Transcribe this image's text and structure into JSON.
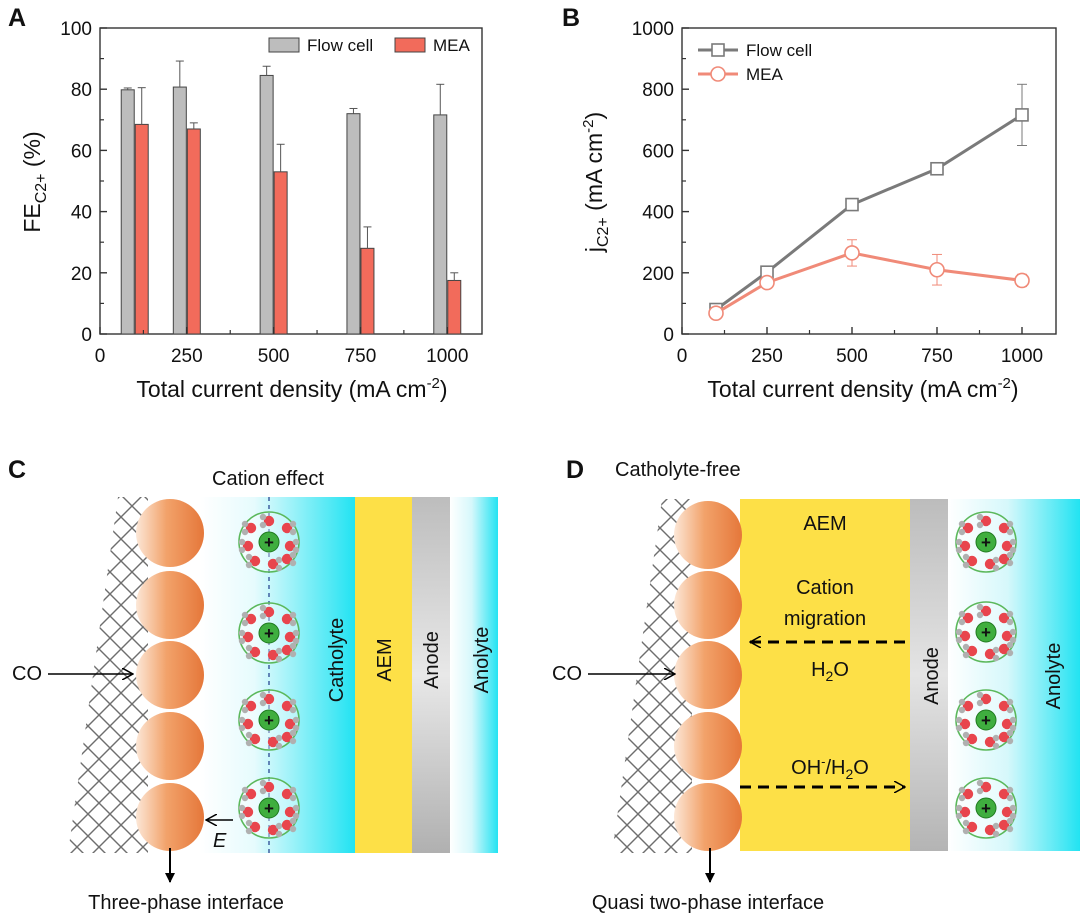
{
  "figure": {
    "colors": {
      "flow": "#bdbdbd",
      "mea": "#f26b5b",
      "flow_line": "#7a7a7a",
      "mea_line": "#f08a78",
      "aem": "#fde047",
      "catholyte": "#22e3f2",
      "anode": "#b4b4b4",
      "sphere": "#ee8a4c",
      "ion_ring": "#5bb85b",
      "water_red": "#e8454d",
      "water_gray": "#b0b0b0"
    },
    "panels": {
      "A": "A",
      "B": "B",
      "C": "C",
      "D": "D"
    },
    "C": {
      "title": "Cation effect",
      "feed": "CO",
      "labels": {
        "catholyte": "Catholyte",
        "aem": "AEM",
        "anode": "Anode",
        "anolyte": "Anolyte"
      },
      "field": "E",
      "ion_charge": "+",
      "caption": "Three-phase interface"
    },
    "D": {
      "title": "Catholyte-free",
      "feed": "CO",
      "labels": {
        "aem": "AEM",
        "anode": "Anode",
        "anolyte": "Anolyte"
      },
      "migration_line1": "Cation",
      "migration_line2": "migration",
      "water": "H",
      "water_sub": "2",
      "water_end": "O",
      "oh": "OH",
      "oh_sup": "-",
      "oh_mid": "/H",
      "oh_sub": "2",
      "oh_end": "O",
      "ion_charge": "+",
      "caption": "Quasi two-phase interface"
    }
  },
  "chart_data": [
    {
      "id": "A",
      "type": "bar",
      "ylabel_main": "FE",
      "ylabel_sub": "C2+",
      "ylabel_unit": " (%)",
      "xlabel_main": "Total current density (mA cm",
      "xlabel_sup": "-2",
      "xlabel_end": ")",
      "ylim": [
        0,
        100
      ],
      "xlim": [
        0,
        1100
      ],
      "yticks": [
        "0",
        "20",
        "40",
        "60",
        "80",
        "100"
      ],
      "xticks": [
        "0",
        "250",
        "500",
        "750",
        "1000"
      ],
      "categories": [
        100,
        250,
        500,
        750,
        1000
      ],
      "series": [
        {
          "name": "Flow cell",
          "values": [
            79.8,
            80.7,
            84.5,
            72.0,
            71.6
          ],
          "errors": [
            0.6,
            8.5,
            3.0,
            1.7,
            10.0
          ]
        },
        {
          "name": "MEA",
          "values": [
            68.5,
            67.0,
            53.0,
            28.0,
            17.5
          ],
          "errors": [
            12.0,
            2.0,
            9.0,
            7.0,
            2.5
          ]
        }
      ],
      "legend": "top-right"
    },
    {
      "id": "B",
      "type": "line",
      "ylabel_main": "j",
      "ylabel_sub": "C2+",
      "ylabel_unit": " (mA cm",
      "ylabel_sup": "-2",
      "ylabel_end": ")",
      "xlabel_main": "Total current density (mA cm",
      "xlabel_sup": "-2",
      "xlabel_end": ")",
      "ylim": [
        0,
        1000
      ],
      "xlim": [
        0,
        1100
      ],
      "yticks": [
        "0",
        "200",
        "400",
        "600",
        "800",
        "1000"
      ],
      "xticks": [
        "0",
        "250",
        "500",
        "750",
        "1000"
      ],
      "x": [
        100,
        250,
        500,
        750,
        1000
      ],
      "series": [
        {
          "name": "Flow cell",
          "values": [
            80,
            202,
            423,
            540,
            716
          ],
          "errors": [
            5,
            12,
            10,
            15,
            100
          ]
        },
        {
          "name": "MEA",
          "values": [
            68,
            168,
            265,
            210,
            175
          ],
          "errors": [
            14,
            12,
            43,
            50,
            20
          ]
        }
      ],
      "legend": "top-left"
    }
  ]
}
